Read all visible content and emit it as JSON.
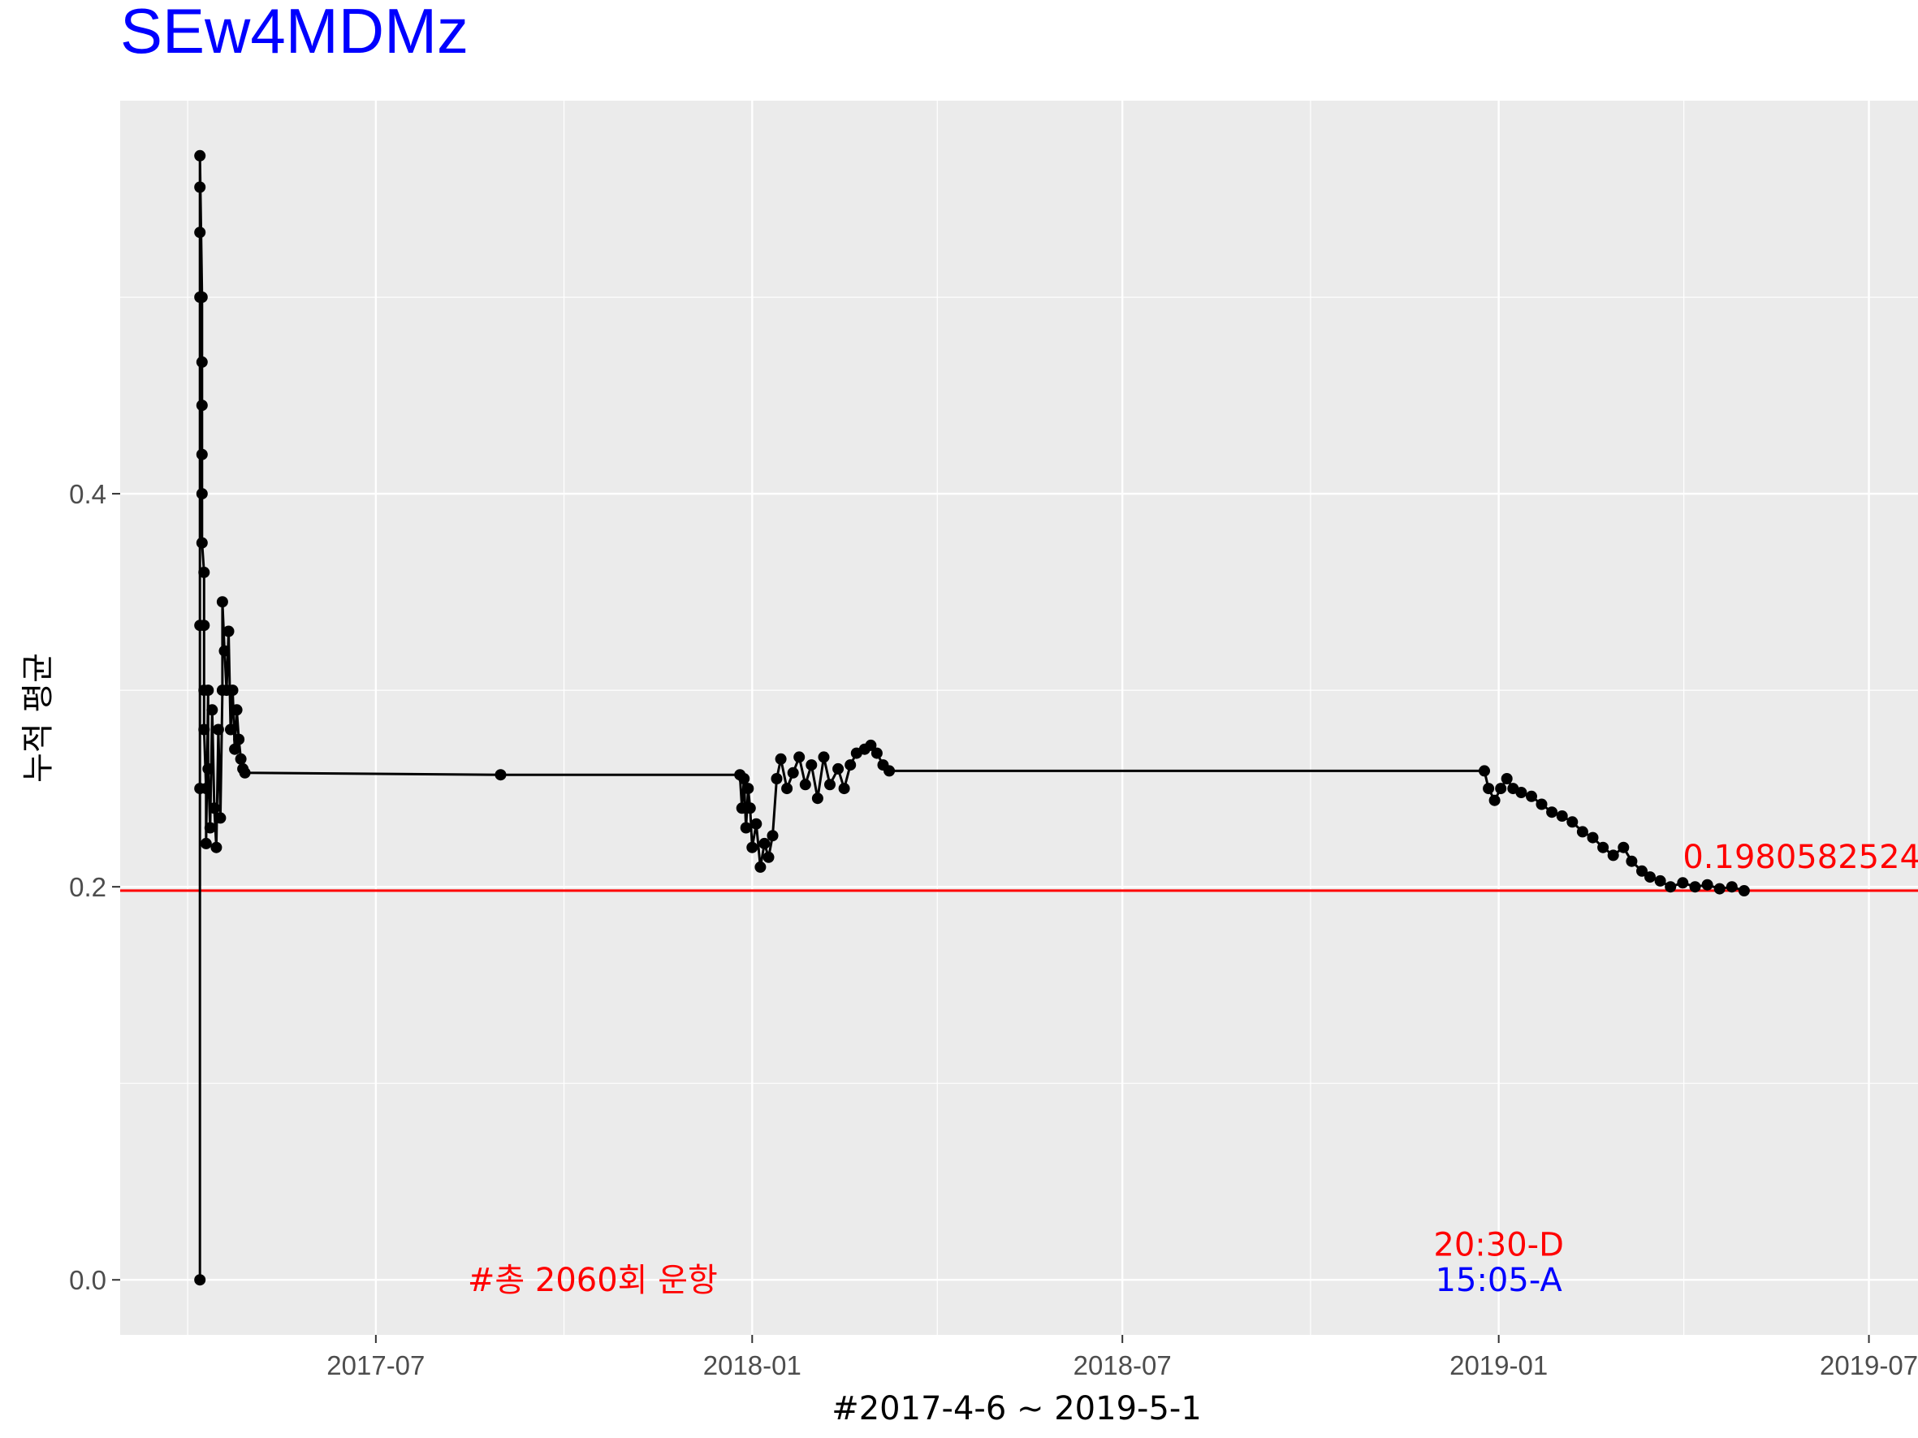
{
  "chart_data": {
    "type": "line",
    "title": "SEw4MDMz",
    "xlabel": "#2017-4-6 ~ 2019-5-1",
    "ylabel": "누적 평균",
    "xlim": [
      "2017-02-26",
      "2019-07-25"
    ],
    "ylim": [
      -0.028,
      0.6
    ],
    "x_ticks": [
      "2017-07-01",
      "2018-01-01",
      "2018-07-01",
      "2019-01-01",
      "2019-07-01"
    ],
    "x_tick_labels": [
      "2017-07",
      "2018-01",
      "2018-07",
      "2019-01",
      "2019-07"
    ],
    "y_ticks": [
      0.0,
      0.2,
      0.4
    ],
    "y_tick_labels": [
      "0.0",
      "0.2",
      "0.4"
    ],
    "grid": true,
    "background": "#ebebeb",
    "line_color": "#000000",
    "reference_line": {
      "y": 0.19805825242,
      "color": "#ff0000",
      "label": "0.19805825242"
    },
    "annotations": [
      {
        "text": "#총 2060회 운항",
        "x": "2017-10-15",
        "y": 0.0,
        "color": "#ff0000"
      },
      {
        "text": "20:30-D",
        "x": "2019-01-01",
        "y": 0.018,
        "color": "#ff0000"
      },
      {
        "text": "15:05-A",
        "x": "2019-01-01",
        "y": 0.0,
        "color": "#0000ff"
      }
    ],
    "series": [
      {
        "points": [
          [
            "2017-04-06",
            0.0
          ],
          [
            "2017-04-06",
            0.25
          ],
          [
            "2017-04-06",
            0.333
          ],
          [
            "2017-04-06",
            0.5
          ],
          [
            "2017-04-06",
            0.533
          ],
          [
            "2017-04-06",
            0.556
          ],
          [
            "2017-04-06",
            0.572
          ],
          [
            "2017-04-07",
            0.5
          ],
          [
            "2017-04-07",
            0.467
          ],
          [
            "2017-04-07",
            0.445
          ],
          [
            "2017-04-07",
            0.42
          ],
          [
            "2017-04-07",
            0.4
          ],
          [
            "2017-04-07",
            0.375
          ],
          [
            "2017-04-08",
            0.36
          ],
          [
            "2017-04-08",
            0.333
          ],
          [
            "2017-04-08",
            0.3
          ],
          [
            "2017-04-08",
            0.28
          ],
          [
            "2017-04-09",
            0.25
          ],
          [
            "2017-04-09",
            0.222
          ],
          [
            "2017-04-10",
            0.3
          ],
          [
            "2017-04-10",
            0.26
          ],
          [
            "2017-04-11",
            0.23
          ],
          [
            "2017-04-12",
            0.29
          ],
          [
            "2017-04-13",
            0.24
          ],
          [
            "2017-04-14",
            0.22
          ],
          [
            "2017-04-15",
            0.28
          ],
          [
            "2017-04-16",
            0.235
          ],
          [
            "2017-04-17",
            0.3
          ],
          [
            "2017-04-17",
            0.345
          ],
          [
            "2017-04-18",
            0.32
          ],
          [
            "2017-04-19",
            0.3
          ],
          [
            "2017-04-20",
            0.33
          ],
          [
            "2017-04-21",
            0.28
          ],
          [
            "2017-04-22",
            0.3
          ],
          [
            "2017-04-23",
            0.27
          ],
          [
            "2017-04-24",
            0.29
          ],
          [
            "2017-04-25",
            0.275
          ],
          [
            "2017-04-26",
            0.265
          ],
          [
            "2017-04-27",
            0.26
          ],
          [
            "2017-04-28",
            0.258
          ],
          [
            "2017-08-31",
            0.257
          ],
          [
            "2017-12-26",
            0.257
          ],
          [
            "2017-12-27",
            0.24
          ],
          [
            "2017-12-28",
            0.255
          ],
          [
            "2017-12-29",
            0.23
          ],
          [
            "2017-12-30",
            0.25
          ],
          [
            "2017-12-31",
            0.24
          ],
          [
            "2018-01-01",
            0.22
          ],
          [
            "2018-01-03",
            0.232
          ],
          [
            "2018-01-05",
            0.21
          ],
          [
            "2018-01-07",
            0.222
          ],
          [
            "2018-01-09",
            0.215
          ],
          [
            "2018-01-11",
            0.226
          ],
          [
            "2018-01-13",
            0.255
          ],
          [
            "2018-01-15",
            0.265
          ],
          [
            "2018-01-18",
            0.25
          ],
          [
            "2018-01-21",
            0.258
          ],
          [
            "2018-01-24",
            0.266
          ],
          [
            "2018-01-27",
            0.252
          ],
          [
            "2018-01-30",
            0.262
          ],
          [
            "2018-02-02",
            0.245
          ],
          [
            "2018-02-05",
            0.266
          ],
          [
            "2018-02-08",
            0.252
          ],
          [
            "2018-02-12",
            0.26
          ],
          [
            "2018-02-15",
            0.25
          ],
          [
            "2018-02-18",
            0.262
          ],
          [
            "2018-02-21",
            0.268
          ],
          [
            "2018-02-25",
            0.27
          ],
          [
            "2018-02-28",
            0.272
          ],
          [
            "2018-03-03",
            0.268
          ],
          [
            "2018-03-06",
            0.262
          ],
          [
            "2018-03-09",
            0.259
          ],
          [
            "2018-12-25",
            0.259
          ],
          [
            "2018-12-27",
            0.25
          ],
          [
            "2018-12-30",
            0.244
          ],
          [
            "2019-01-02",
            0.25
          ],
          [
            "2019-01-05",
            0.255
          ],
          [
            "2019-01-08",
            0.25
          ],
          [
            "2019-01-12",
            0.248
          ],
          [
            "2019-01-17",
            0.246
          ],
          [
            "2019-01-22",
            0.242
          ],
          [
            "2019-01-27",
            0.238
          ],
          [
            "2019-02-01",
            0.236
          ],
          [
            "2019-02-06",
            0.233
          ],
          [
            "2019-02-11",
            0.228
          ],
          [
            "2019-02-16",
            0.225
          ],
          [
            "2019-02-21",
            0.22
          ],
          [
            "2019-02-26",
            0.216
          ],
          [
            "2019-03-03",
            0.22
          ],
          [
            "2019-03-07",
            0.213
          ],
          [
            "2019-03-12",
            0.208
          ],
          [
            "2019-03-16",
            0.205
          ],
          [
            "2019-03-21",
            0.203
          ],
          [
            "2019-03-26",
            0.2
          ],
          [
            "2019-04-01",
            0.202
          ],
          [
            "2019-04-07",
            0.2
          ],
          [
            "2019-04-13",
            0.201
          ],
          [
            "2019-04-19",
            0.199
          ],
          [
            "2019-04-25",
            0.2
          ],
          [
            "2019-05-01",
            0.198
          ]
        ]
      }
    ]
  }
}
